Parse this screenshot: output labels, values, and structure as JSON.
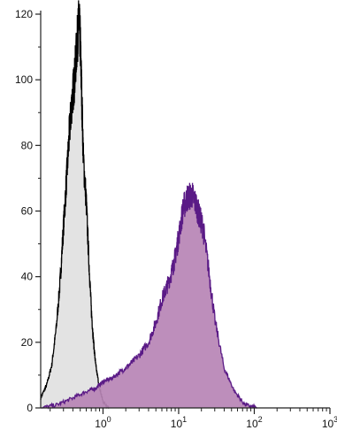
{
  "chart_data": {
    "type": "area",
    "title": "",
    "xlabel": "",
    "ylabel": "",
    "xscale": "log",
    "xlim": [
      0.15,
      1000
    ],
    "ylim": [
      0,
      120
    ],
    "grid": false,
    "legend": "none",
    "x_ticks": [
      {
        "value": 1,
        "base": "10",
        "exp": "0"
      },
      {
        "value": 10,
        "base": "10",
        "exp": "1"
      },
      {
        "value": 100,
        "base": "10",
        "exp": "2"
      },
      {
        "value": 1000,
        "base": "10",
        "exp": "3"
      }
    ],
    "y_ticks": [
      {
        "value": 0,
        "label": "0"
      },
      {
        "value": 20,
        "label": "20"
      },
      {
        "value": 40,
        "label": "40"
      },
      {
        "value": 60,
        "label": "60"
      },
      {
        "value": 80,
        "label": "80"
      },
      {
        "value": 100,
        "label": "100"
      },
      {
        "value": 120,
        "label": "120"
      }
    ],
    "series": [
      {
        "fill": "#e3e3e3",
        "stroke": "#000000",
        "x": [
          0.15,
          0.18,
          0.21,
          0.24,
          0.27,
          0.3,
          0.33,
          0.36,
          0.39,
          0.42,
          0.45,
          0.48,
          0.5,
          0.52,
          0.55,
          0.6,
          0.65,
          0.7,
          0.75,
          0.8,
          0.9,
          1.0,
          1.2
        ],
        "y": [
          3,
          7,
          13,
          24,
          38,
          55,
          70,
          84,
          94,
          100,
          110,
          118,
          112,
          98,
          76,
          63,
          45,
          30,
          20,
          13,
          6,
          2,
          0
        ]
      },
      {
        "fill": "#b784b5",
        "stroke": "#5a1a86",
        "x": [
          0.15,
          0.25,
          0.4,
          0.6,
          0.8,
          1.0,
          1.3,
          1.7,
          2.2,
          3.0,
          4.0,
          5.0,
          6.0,
          7.0,
          8.0,
          9.0,
          10.0,
          11.5,
          13.0,
          15.0,
          17.0,
          19.0,
          21.0,
          25.0,
          30.0,
          40.0,
          55.0,
          75.0,
          110.0
        ],
        "y": [
          0,
          1,
          3,
          5,
          6,
          8,
          9,
          11,
          13,
          16,
          20,
          26,
          33,
          37,
          41,
          46,
          52,
          61,
          64,
          65,
          62,
          58,
          55,
          42,
          27,
          12,
          5,
          1,
          0
        ]
      }
    ]
  }
}
